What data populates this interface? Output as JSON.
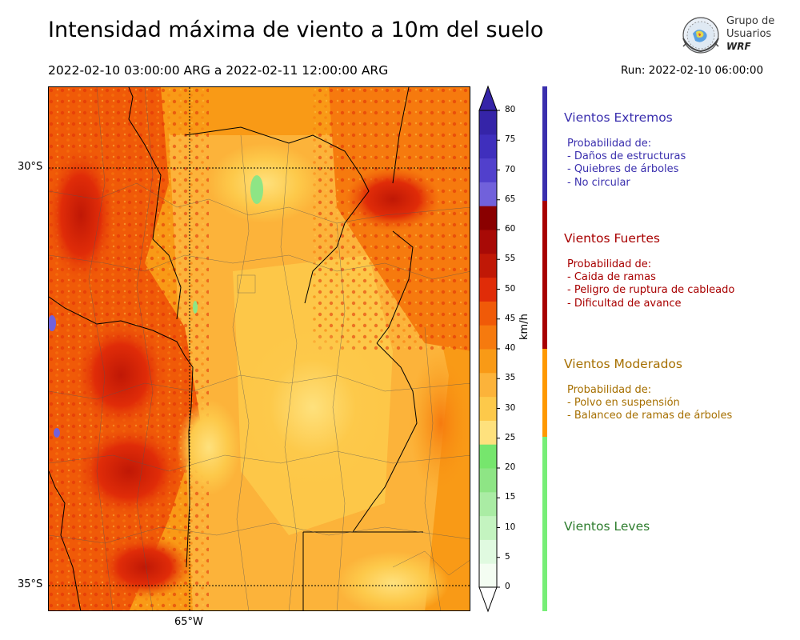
{
  "header": {
    "title": "Intensidad máxima de viento a 10m del suelo",
    "period": "2022-02-10 03:00:00 ARG  a  2022-02-11 12:00:00 ARG",
    "run": "Run: 2022-02-10 06:00:00"
  },
  "logo": {
    "line1": "Grupo de",
    "line2": "Usuarios",
    "line3": "WRF"
  },
  "map": {
    "lat_labels": [
      "30°S",
      "35°S"
    ],
    "lon_labels": [
      "65°W"
    ]
  },
  "colorbar": {
    "unit": "km/h",
    "ticks": [
      "80",
      "75",
      "70",
      "65",
      "60",
      "55",
      "50",
      "45",
      "40",
      "35",
      "30",
      "25",
      "20",
      "15",
      "10",
      "5",
      "0"
    ],
    "colors": [
      "#f4fdf2",
      "#e0fae0",
      "#c4f4c0",
      "#aaeca4",
      "#8ee585",
      "#76e66d",
      "#fee17d",
      "#fdc94a",
      "#fcb33a",
      "#f99a16",
      "#f67a0e",
      "#f05a08",
      "#e02c08",
      "#c01806",
      "#a80a06",
      "#8a0000",
      "#7161db",
      "#5140cc",
      "#3f2fbd",
      "#3524a8"
    ]
  },
  "categories": {
    "extremos": {
      "title": "Vientos Extremos",
      "heading": "Probabilidad de:",
      "items": [
        "- Daños de estructuras",
        "- Quiebres de árboles",
        "- No circular"
      ],
      "color": "#3a2fae"
    },
    "fuertes": {
      "title": "Vientos Fuertes",
      "heading": "Probabilidad de:",
      "items": [
        "- Caida de ramas",
        "- Peligro de ruptura de cableado",
        "- Dificultad de avance"
      ],
      "color": "#a80000"
    },
    "moderados": {
      "title": "Vientos Moderados",
      "heading": "Probabilidad de:",
      "items": [
        "- Polvo en suspensión",
        "- Balanceo de ramas de árboles"
      ],
      "color": "#a66f00"
    },
    "leves": {
      "title": "Vientos Leves",
      "color": "#2e7d2e"
    }
  },
  "category_bar_colors": {
    "extremos": "#3a2fae",
    "fuertes": "#a80000",
    "moderados": "#ff9900",
    "leves": "#77ee77"
  }
}
